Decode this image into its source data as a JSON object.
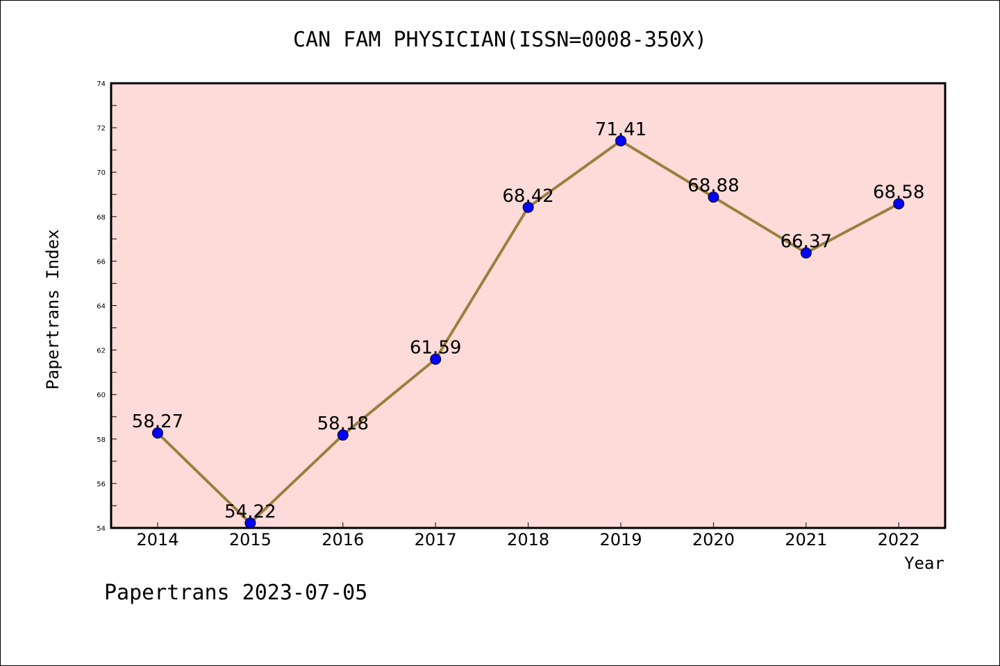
{
  "chart_data": {
    "type": "line",
    "title": "CAN FAM PHYSICIAN(ISSN=0008-350X)",
    "xlabel": "Year",
    "ylabel": "Papertrans Index",
    "categories": [
      "2014",
      "2015",
      "2016",
      "2017",
      "2018",
      "2019",
      "2020",
      "2021",
      "2022"
    ],
    "values": [
      58.27,
      54.22,
      58.18,
      61.59,
      68.42,
      71.41,
      68.88,
      66.37,
      68.58
    ],
    "value_labels": [
      "58.27",
      "54.22",
      "58.18",
      "61.59",
      "68.42",
      "71.41",
      "68.88",
      "66.37",
      "68.58"
    ],
    "ylim": [
      54,
      74
    ],
    "yticks": [
      54,
      56,
      58,
      60,
      62,
      64,
      66,
      68,
      70,
      72,
      74
    ],
    "ytick_labels": [
      "54",
      "56",
      "58",
      "60",
      "62",
      "64",
      "66",
      "68",
      "70",
      "72",
      "74"
    ],
    "grid": false,
    "colors": {
      "plot_background": "#fddbd8",
      "line": "#9a8040",
      "marker": "#0000ff",
      "axes": "#000000"
    }
  },
  "footer": {
    "text": "Papertrans 2023-07-05"
  }
}
